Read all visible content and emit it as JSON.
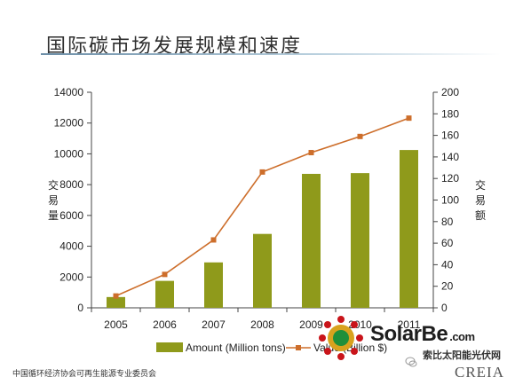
{
  "title": "国际碳市场发展规模和速度",
  "footer": "中国循环经济协会可再生能源专业委员会",
  "logo_text": "CREIA",
  "watermark": {
    "brand": "SolarBe",
    "domain": ".com",
    "subtitle": "索比太阳能光伏网"
  },
  "colors": {
    "bar": "#8f9a1b",
    "line": "#cd6e2b",
    "axis": "#444444",
    "text": "#222222"
  },
  "chart_data": {
    "type": "bar",
    "categories": [
      "2005",
      "2006",
      "2007",
      "2008",
      "2009",
      "2010",
      "2011"
    ],
    "series": [
      {
        "name": "Amount (Million tons)",
        "type": "bar",
        "axis": "left",
        "values": [
          700,
          1750,
          2950,
          4800,
          8700,
          8750,
          10250
        ]
      },
      {
        "name": "Value (Billion $)",
        "type": "line",
        "axis": "right",
        "values": [
          11,
          31,
          63,
          126,
          144,
          159,
          176
        ]
      }
    ],
    "ylabel": "交易量",
    "y2label": "交易额",
    "ylim": [
      0,
      14000
    ],
    "y2lim": [
      0,
      200
    ],
    "yticks": [
      "0",
      "2000",
      "4000",
      "6000",
      "8000",
      "10000",
      "12000",
      "14000"
    ],
    "y2ticks": [
      "0",
      "20",
      "40",
      "60",
      "80",
      "100",
      "120",
      "140",
      "160",
      "180",
      "200"
    ],
    "legend": {
      "position": "bottom",
      "entries": [
        "Amount (Million tons)",
        "Value (Billion $)"
      ]
    },
    "grid": false
  }
}
